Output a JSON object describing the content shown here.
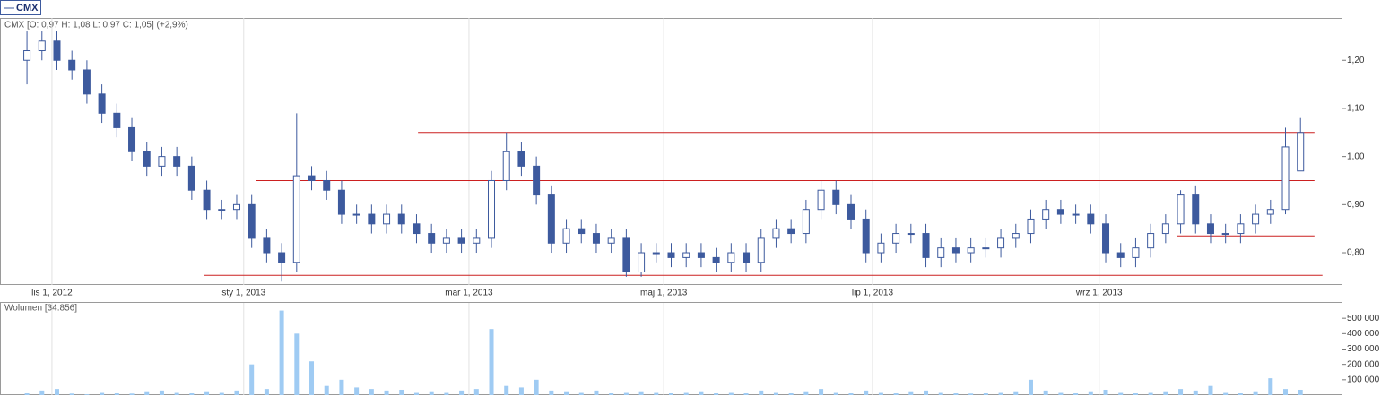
{
  "chart_data": [
    {
      "type": "candlestick",
      "name": "CMX",
      "header": "CMX [O: 0,97  H: 1,08  L: 0,97  C: 1,05] (+2,9%)",
      "up_color": "#ffffff",
      "down_color": "#3d5a9e",
      "color": "#3d5a9e",
      "x": [
        0,
        3,
        6,
        9,
        12,
        15,
        18,
        21,
        24,
        27,
        30,
        33,
        36,
        39,
        42,
        45,
        48,
        51,
        54,
        57,
        60,
        63,
        66,
        69,
        72,
        75,
        78,
        81,
        84,
        87,
        90,
        93,
        96,
        99,
        102,
        105,
        108,
        111,
        114,
        117,
        120,
        123,
        126,
        129,
        132,
        135,
        138,
        141,
        144,
        147,
        150,
        153,
        156,
        159,
        162,
        165,
        168,
        171,
        174,
        177,
        180,
        183,
        186,
        189,
        192,
        195,
        198,
        201,
        204,
        207,
        210,
        213,
        216,
        219,
        222,
        225,
        228,
        231,
        234,
        237,
        240,
        243,
        246,
        249,
        252,
        255
      ],
      "open": [
        1.2,
        1.22,
        1.24,
        1.2,
        1.18,
        1.13,
        1.09,
        1.06,
        1.01,
        0.98,
        1.0,
        0.98,
        0.93,
        0.89,
        0.89,
        0.9,
        0.83,
        0.8,
        0.78,
        0.96,
        0.95,
        0.93,
        0.88,
        0.88,
        0.86,
        0.88,
        0.86,
        0.84,
        0.82,
        0.83,
        0.82,
        0.83,
        0.95,
        1.01,
        0.98,
        0.92,
        0.82,
        0.85,
        0.84,
        0.82,
        0.83,
        0.76,
        0.8,
        0.8,
        0.79,
        0.8,
        0.79,
        0.78,
        0.8,
        0.78,
        0.83,
        0.85,
        0.84,
        0.89,
        0.93,
        0.9,
        0.87,
        0.8,
        0.82,
        0.84,
        0.84,
        0.79,
        0.81,
        0.8,
        0.81,
        0.81,
        0.83,
        0.84,
        0.87,
        0.89,
        0.88,
        0.88,
        0.86,
        0.8,
        0.79,
        0.81,
        0.84,
        0.86,
        0.92,
        0.86,
        0.84,
        0.84,
        0.86,
        0.88,
        0.89,
        0.97
      ],
      "high": [
        1.26,
        1.26,
        1.26,
        1.22,
        1.2,
        1.15,
        1.11,
        1.08,
        1.03,
        1.02,
        1.02,
        1.0,
        0.95,
        0.91,
        0.92,
        0.92,
        0.85,
        0.82,
        1.09,
        0.98,
        0.97,
        0.95,
        0.9,
        0.9,
        0.9,
        0.9,
        0.88,
        0.86,
        0.85,
        0.85,
        0.85,
        0.97,
        1.05,
        1.03,
        1.0,
        0.94,
        0.87,
        0.87,
        0.86,
        0.85,
        0.85,
        0.82,
        0.82,
        0.82,
        0.82,
        0.82,
        0.81,
        0.82,
        0.82,
        0.85,
        0.87,
        0.87,
        0.91,
        0.95,
        0.95,
        0.92,
        0.89,
        0.84,
        0.86,
        0.86,
        0.86,
        0.83,
        0.83,
        0.83,
        0.83,
        0.85,
        0.86,
        0.89,
        0.91,
        0.91,
        0.9,
        0.9,
        0.88,
        0.82,
        0.83,
        0.86,
        0.88,
        0.93,
        0.94,
        0.88,
        0.86,
        0.88,
        0.9,
        0.91,
        1.06,
        1.08
      ],
      "low": [
        1.15,
        1.2,
        1.18,
        1.16,
        1.11,
        1.07,
        1.04,
        0.99,
        0.96,
        0.96,
        0.96,
        0.91,
        0.87,
        0.87,
        0.87,
        0.81,
        0.78,
        0.74,
        0.76,
        0.93,
        0.91,
        0.86,
        0.86,
        0.84,
        0.84,
        0.84,
        0.82,
        0.8,
        0.8,
        0.8,
        0.8,
        0.81,
        0.93,
        0.96,
        0.9,
        0.8,
        0.8,
        0.82,
        0.8,
        0.8,
        0.75,
        0.75,
        0.78,
        0.77,
        0.77,
        0.77,
        0.76,
        0.76,
        0.76,
        0.76,
        0.81,
        0.82,
        0.82,
        0.87,
        0.88,
        0.85,
        0.78,
        0.78,
        0.8,
        0.82,
        0.77,
        0.77,
        0.78,
        0.78,
        0.79,
        0.79,
        0.81,
        0.82,
        0.85,
        0.86,
        0.86,
        0.84,
        0.78,
        0.77,
        0.77,
        0.79,
        0.82,
        0.84,
        0.84,
        0.82,
        0.82,
        0.82,
        0.84,
        0.86,
        0.88,
        0.97
      ],
      "close": [
        1.22,
        1.24,
        1.2,
        1.18,
        1.13,
        1.09,
        1.06,
        1.01,
        0.98,
        1.0,
        0.98,
        0.93,
        0.89,
        0.89,
        0.9,
        0.83,
        0.8,
        0.78,
        0.96,
        0.95,
        0.93,
        0.88,
        0.88,
        0.86,
        0.88,
        0.86,
        0.84,
        0.82,
        0.83,
        0.82,
        0.83,
        0.95,
        1.01,
        0.98,
        0.92,
        0.82,
        0.85,
        0.84,
        0.82,
        0.83,
        0.76,
        0.8,
        0.8,
        0.79,
        0.8,
        0.79,
        0.78,
        0.8,
        0.78,
        0.83,
        0.85,
        0.84,
        0.89,
        0.93,
        0.9,
        0.87,
        0.8,
        0.82,
        0.84,
        0.84,
        0.79,
        0.81,
        0.8,
        0.81,
        0.81,
        0.83,
        0.84,
        0.87,
        0.89,
        0.88,
        0.88,
        0.86,
        0.8,
        0.79,
        0.81,
        0.84,
        0.86,
        0.92,
        0.86,
        0.84,
        0.84,
        0.86,
        0.88,
        0.89,
        1.02,
        1.05
      ],
      "xlim": [
        -5.4,
        263.4
      ],
      "xticks": [
        {
          "value": 5,
          "label": "lis 1, 2012"
        },
        {
          "value": 43.4,
          "label": "sty 1, 2013"
        },
        {
          "value": 88.5,
          "label": "mar 1, 2013"
        },
        {
          "value": 127.5,
          "label": "maj 1, 2013"
        },
        {
          "value": 169.3,
          "label": "lip 1, 2013"
        },
        {
          "value": 214.7,
          "label": "wrz 1, 2013"
        }
      ],
      "ylim": [
        0.733,
        1.288
      ],
      "yticks": [
        {
          "value": 0.8,
          "label": "0,80"
        },
        {
          "value": 0.9,
          "label": "0,90"
        },
        {
          "value": 1.0,
          "label": "1,00"
        },
        {
          "value": 1.1,
          "label": "1,10"
        },
        {
          "value": 1.2,
          "label": "1,20"
        }
      ],
      "level_color": "#cc2020",
      "levels": [
        {
          "value": 1.05,
          "from": 78.3,
          "to": 257.8
        },
        {
          "value": 0.95,
          "from": 45.8,
          "to": 257.8
        },
        {
          "value": 0.835,
          "from": 230.2,
          "to": 257.8
        },
        {
          "value": 0.753,
          "from": 35.5,
          "to": 259.4
        }
      ],
      "grid": true
    },
    {
      "type": "bar",
      "title": "Wolumen [34.856]",
      "color": "#9fcbf3",
      "x": [
        0,
        3,
        6,
        9,
        12,
        15,
        18,
        21,
        24,
        27,
        30,
        33,
        36,
        39,
        42,
        45,
        48,
        51,
        54,
        57,
        60,
        63,
        66,
        69,
        72,
        75,
        78,
        81,
        84,
        87,
        90,
        93,
        96,
        99,
        102,
        105,
        108,
        111,
        114,
        117,
        120,
        123,
        126,
        129,
        132,
        135,
        138,
        141,
        144,
        147,
        150,
        153,
        156,
        159,
        162,
        165,
        168,
        171,
        174,
        177,
        180,
        183,
        186,
        189,
        192,
        195,
        198,
        201,
        204,
        207,
        210,
        213,
        216,
        219,
        222,
        225,
        228,
        231,
        234,
        237,
        240,
        243,
        246,
        249,
        252,
        255
      ],
      "values": [
        15000,
        30000,
        40000,
        10000,
        5000,
        20000,
        15000,
        10000,
        25000,
        30000,
        20000,
        15000,
        25000,
        20000,
        30000,
        200000,
        40000,
        550000,
        400000,
        220000,
        60000,
        100000,
        50000,
        40000,
        30000,
        35000,
        20000,
        25000,
        20000,
        30000,
        40000,
        430000,
        60000,
        50000,
        100000,
        30000,
        25000,
        20000,
        30000,
        15000,
        20000,
        25000,
        20000,
        15000,
        20000,
        25000,
        15000,
        20000,
        15000,
        30000,
        20000,
        15000,
        25000,
        40000,
        20000,
        15000,
        30000,
        20000,
        15000,
        25000,
        30000,
        20000,
        15000,
        10000,
        15000,
        20000,
        25000,
        100000,
        30000,
        20000,
        15000,
        25000,
        35000,
        20000,
        15000,
        20000,
        25000,
        40000,
        30000,
        60000,
        20000,
        15000,
        25000,
        110000,
        40000,
        35000
      ],
      "xlim": [
        -5.4,
        263.4
      ],
      "ylim": [
        0,
        600000
      ],
      "yticks": [
        {
          "value": 100000,
          "label": "100 000"
        },
        {
          "value": 200000,
          "label": "200 000"
        },
        {
          "value": 300000,
          "label": "300 000"
        },
        {
          "value": 400000,
          "label": "400 000"
        },
        {
          "value": 500000,
          "label": "500 000"
        }
      ],
      "grid": true
    }
  ]
}
